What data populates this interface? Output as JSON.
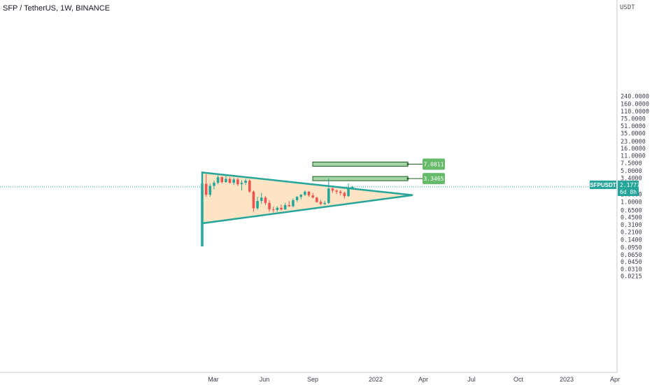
{
  "symbol_title": "SFP / TetherUS, 1W, BINANCE",
  "unit": "USDT",
  "y_axis_labels": [
    "240.0000",
    "160.0000",
    "110.0000",
    "75.0000",
    "51.0000",
    "35.0000",
    "23.0000",
    "16.0000",
    "11.0000",
    "7.5000",
    "5.0000",
    "3.4000",
    "1.5000",
    "1.0000",
    "0.6500",
    "0.4500",
    "0.3100",
    "0.2100",
    "0.1400",
    "0.0950",
    "0.0650",
    "0.0450",
    "0.0310",
    "0.0215"
  ],
  "x_axis_labels": [
    "Mar",
    "Jun",
    "Sep",
    "2022",
    "Apr",
    "Jul",
    "Oct",
    "2023",
    "Apr"
  ],
  "price_tag": {
    "symbol": "SFPUSDT",
    "price": "2.1777",
    "countdown": "6d 8h"
  },
  "targets": [
    {
      "label": "7.0811",
      "value": 7.0811
    },
    {
      "label": "3.3465",
      "value": 3.3465
    }
  ],
  "colors": {
    "up": "#26a69a",
    "down": "#ef5350",
    "triangle_fill": "#fde4c4",
    "triangle_stroke": "#26a69a",
    "target_fill": "#a5d6a7",
    "tag_fill": "#66bb6a",
    "price_line": "#26a69a"
  },
  "chart_data": {
    "type": "candlestick",
    "scale": "log",
    "ylim": [
      0.0215,
      240
    ],
    "current_price": 2.1777,
    "candles": [
      {
        "o": 0.1,
        "h": 2.7,
        "l": 0.1,
        "c": 2.55
      },
      {
        "o": 2.55,
        "h": 4.2,
        "l": 1.3,
        "c": 1.45
      },
      {
        "o": 1.45,
        "h": 2.6,
        "l": 1.3,
        "c": 2.3
      },
      {
        "o": 2.3,
        "h": 3.0,
        "l": 1.9,
        "c": 2.7
      },
      {
        "o": 2.7,
        "h": 4.0,
        "l": 2.5,
        "c": 3.6
      },
      {
        "o": 3.6,
        "h": 3.8,
        "l": 2.6,
        "c": 2.8
      },
      {
        "o": 2.8,
        "h": 4.0,
        "l": 2.7,
        "c": 3.3
      },
      {
        "o": 3.3,
        "h": 3.6,
        "l": 2.6,
        "c": 2.7
      },
      {
        "o": 2.7,
        "h": 3.5,
        "l": 2.4,
        "c": 3.2
      },
      {
        "o": 3.2,
        "h": 3.5,
        "l": 2.3,
        "c": 2.5
      },
      {
        "o": 2.5,
        "h": 3.1,
        "l": 1.8,
        "c": 2.7
      },
      {
        "o": 2.7,
        "h": 3.3,
        "l": 2.4,
        "c": 3.0
      },
      {
        "o": 3.0,
        "h": 3.2,
        "l": 1.6,
        "c": 1.7
      },
      {
        "o": 1.7,
        "h": 1.8,
        "l": 0.6,
        "c": 0.72
      },
      {
        "o": 0.72,
        "h": 1.3,
        "l": 0.66,
        "c": 1.05
      },
      {
        "o": 1.05,
        "h": 1.6,
        "l": 0.9,
        "c": 1.25
      },
      {
        "o": 1.25,
        "h": 1.35,
        "l": 0.85,
        "c": 0.95
      },
      {
        "o": 0.95,
        "h": 1.1,
        "l": 0.6,
        "c": 0.68
      },
      {
        "o": 0.68,
        "h": 0.78,
        "l": 0.58,
        "c": 0.66
      },
      {
        "o": 0.66,
        "h": 0.8,
        "l": 0.6,
        "c": 0.74
      },
      {
        "o": 0.74,
        "h": 0.86,
        "l": 0.64,
        "c": 0.68
      },
      {
        "o": 0.68,
        "h": 0.95,
        "l": 0.66,
        "c": 0.85
      },
      {
        "o": 0.85,
        "h": 1.05,
        "l": 0.78,
        "c": 0.8
      },
      {
        "o": 0.8,
        "h": 1.2,
        "l": 0.75,
        "c": 1.1
      },
      {
        "o": 1.1,
        "h": 1.35,
        "l": 1.0,
        "c": 1.3
      },
      {
        "o": 1.3,
        "h": 1.5,
        "l": 1.15,
        "c": 1.45
      },
      {
        "o": 1.45,
        "h": 1.8,
        "l": 1.35,
        "c": 1.7
      },
      {
        "o": 1.7,
        "h": 1.75,
        "l": 1.3,
        "c": 1.4
      },
      {
        "o": 1.4,
        "h": 1.6,
        "l": 1.2,
        "c": 1.25
      },
      {
        "o": 1.25,
        "h": 1.3,
        "l": 0.95,
        "c": 1.0
      },
      {
        "o": 1.0,
        "h": 1.1,
        "l": 0.85,
        "c": 0.9
      },
      {
        "o": 0.9,
        "h": 1.05,
        "l": 0.85,
        "c": 0.95
      },
      {
        "o": 0.95,
        "h": 3.4,
        "l": 0.9,
        "c": 2.0
      },
      {
        "o": 2.0,
        "h": 2.1,
        "l": 1.6,
        "c": 1.8
      },
      {
        "o": 1.8,
        "h": 1.9,
        "l": 1.5,
        "c": 1.7
      },
      {
        "o": 1.7,
        "h": 1.85,
        "l": 1.4,
        "c": 1.6
      },
      {
        "o": 1.6,
        "h": 1.7,
        "l": 1.2,
        "c": 1.35
      },
      {
        "o": 1.35,
        "h": 2.6,
        "l": 1.3,
        "c": 2.0
      },
      {
        "o": 2.0,
        "h": 2.3,
        "l": 1.9,
        "c": 2.1777
      }
    ],
    "triangle": {
      "apex_price": 1.42,
      "top_price": 4.6,
      "bottom_price": 0.33
    }
  }
}
